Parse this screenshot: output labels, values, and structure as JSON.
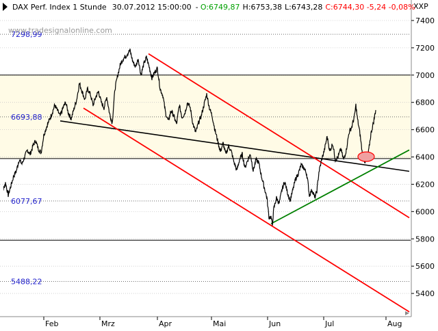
{
  "header": {
    "instrument": "DAX Perf. Index 1 Stunde",
    "datetime": "30.07.2012 15:00:00",
    "open": "O:6749,87",
    "high": "H:6753,38",
    "low": "L:6743,28",
    "close_change": "C:6744,30 -5,24 -0,08%",
    "watermark": "www.tradesignalonline.com"
  },
  "colors": {
    "background": "#ffffff",
    "band_fill": "#fffbe6",
    "price_line": "#000000",
    "channel": "#ff0000",
    "support": "#008000",
    "trendline": "#000000",
    "fib_label": "#2222cc",
    "open_text": "#00a000",
    "close_text": "#ff0000",
    "marker_fill": "#f0a0a0"
  },
  "chart_data": {
    "type": "line",
    "symbol": "XXP",
    "x_labels": [
      "Feb",
      "Mrz",
      "Apr",
      "Mai",
      "Jun",
      "Jul",
      "Aug"
    ],
    "y_ticks": [
      5400,
      5600,
      5800,
      6000,
      6200,
      6400,
      6600,
      6800,
      7000,
      7200,
      7400
    ],
    "ylim": [
      5230,
      7450
    ],
    "grid": "horizontal-dotted",
    "levels": [
      {
        "value": 7298.99,
        "label": "7298,99",
        "style": "dotted"
      },
      {
        "value": 7000,
        "label": "",
        "style": "solid"
      },
      {
        "value": 6693.88,
        "label": "6693,88",
        "style": "dotted"
      },
      {
        "value": 6388,
        "label": "",
        "style": "solid"
      },
      {
        "value": 6077.67,
        "label": "6077,67",
        "style": "dotted"
      },
      {
        "value": 5790,
        "label": "",
        "style": "solid"
      },
      {
        "value": 5488.22,
        "label": "5488,22",
        "style": "dotted"
      }
    ],
    "band": [
      6388,
      7000
    ],
    "series": [
      {
        "values": [
          [
            0,
            6040
          ],
          [
            4,
            6150
          ],
          [
            8,
            6210
          ],
          [
            12,
            6120
          ],
          [
            16,
            6190
          ],
          [
            20,
            6260
          ],
          [
            24,
            6300
          ],
          [
            28,
            6380
          ],
          [
            32,
            6350
          ],
          [
            36,
            6400
          ],
          [
            40,
            6450
          ],
          [
            44,
            6420
          ],
          [
            48,
            6480
          ],
          [
            52,
            6520
          ],
          [
            56,
            6460
          ],
          [
            60,
            6430
          ],
          [
            64,
            6560
          ],
          [
            68,
            6620
          ],
          [
            72,
            6670
          ],
          [
            76,
            6720
          ],
          [
            80,
            6780
          ],
          [
            84,
            6740
          ],
          [
            88,
            6700
          ],
          [
            92,
            6760
          ],
          [
            96,
            6800
          ],
          [
            100,
            6720
          ],
          [
            104,
            6680
          ],
          [
            108,
            6750
          ],
          [
            112,
            6820
          ],
          [
            116,
            6940
          ],
          [
            120,
            6880
          ],
          [
            124,
            6820
          ],
          [
            128,
            6900
          ],
          [
            132,
            6860
          ],
          [
            136,
            6780
          ],
          [
            140,
            6840
          ],
          [
            144,
            6880
          ],
          [
            148,
            6800
          ],
          [
            152,
            6760
          ],
          [
            156,
            6840
          ],
          [
            160,
            6720
          ],
          [
            164,
            6650
          ],
          [
            168,
            6900
          ],
          [
            172,
            7000
          ],
          [
            176,
            7080
          ],
          [
            180,
            7120
          ],
          [
            184,
            7140
          ],
          [
            188,
            7170
          ],
          [
            190,
            7180
          ],
          [
            194,
            7100
          ],
          [
            198,
            7060
          ],
          [
            202,
            7120
          ],
          [
            206,
            7000
          ],
          [
            210,
            7080
          ],
          [
            214,
            7130
          ],
          [
            218,
            7060
          ],
          [
            222,
            6980
          ],
          [
            226,
            7020
          ],
          [
            230,
            7050
          ],
          [
            234,
            6900
          ],
          [
            238,
            6850
          ],
          [
            242,
            6720
          ],
          [
            246,
            6660
          ],
          [
            250,
            6740
          ],
          [
            254,
            6700
          ],
          [
            258,
            6640
          ],
          [
            262,
            6780
          ],
          [
            266,
            6690
          ],
          [
            270,
            6720
          ],
          [
            274,
            6800
          ],
          [
            278,
            6760
          ],
          [
            282,
            6640
          ],
          [
            286,
            6580
          ],
          [
            290,
            6650
          ],
          [
            294,
            6700
          ],
          [
            298,
            6780
          ],
          [
            302,
            6860
          ],
          [
            306,
            6760
          ],
          [
            310,
            6700
          ],
          [
            314,
            6600
          ],
          [
            318,
            6520
          ],
          [
            322,
            6440
          ],
          [
            326,
            6500
          ],
          [
            330,
            6420
          ],
          [
            334,
            6480
          ],
          [
            338,
            6440
          ],
          [
            342,
            6360
          ],
          [
            346,
            6300
          ],
          [
            350,
            6380
          ],
          [
            354,
            6420
          ],
          [
            358,
            6320
          ],
          [
            362,
            6380
          ],
          [
            366,
            6420
          ],
          [
            370,
            6300
          ],
          [
            374,
            6380
          ],
          [
            378,
            6360
          ],
          [
            382,
            6260
          ],
          [
            386,
            6180
          ],
          [
            390,
            6100
          ],
          [
            393,
            5960
          ],
          [
            396,
            5960
          ],
          [
            398,
            5900
          ],
          [
            400,
            6020
          ],
          [
            404,
            6100
          ],
          [
            408,
            6060
          ],
          [
            412,
            6160
          ],
          [
            416,
            6220
          ],
          [
            420,
            6140
          ],
          [
            424,
            6080
          ],
          [
            428,
            6160
          ],
          [
            432,
            6240
          ],
          [
            436,
            6280
          ],
          [
            440,
            6340
          ],
          [
            444,
            6320
          ],
          [
            448,
            6280
          ],
          [
            450,
            6210
          ],
          [
            452,
            6120
          ],
          [
            456,
            6160
          ],
          [
            460,
            6100
          ],
          [
            463,
            6150
          ],
          [
            466,
            6290
          ],
          [
            470,
            6380
          ],
          [
            474,
            6450
          ],
          [
            478,
            6550
          ],
          [
            482,
            6440
          ],
          [
            486,
            6500
          ],
          [
            490,
            6380
          ],
          [
            494,
            6400
          ],
          [
            498,
            6460
          ],
          [
            502,
            6380
          ],
          [
            506,
            6450
          ],
          [
            510,
            6580
          ],
          [
            514,
            6620
          ],
          [
            518,
            6700
          ],
          [
            520,
            6780
          ],
          [
            522,
            6690
          ],
          [
            526,
            6570
          ],
          [
            530,
            6400
          ],
          [
            534,
            6360
          ],
          [
            538,
            6420
          ],
          [
            542,
            6570
          ],
          [
            546,
            6660
          ],
          [
            549,
            6744
          ]
        ]
      }
    ],
    "lines": [
      {
        "name": "trendline",
        "color": "#000000",
        "points": [
          [
            88,
            6664
          ],
          [
            598,
            6295
          ]
        ]
      },
      {
        "name": "channel-upper",
        "color": "#ff0000",
        "points": [
          [
            217,
            7156
          ],
          [
            598,
            5955
          ]
        ]
      },
      {
        "name": "channel-lower",
        "color": "#ff0000",
        "points": [
          [
            122,
            6758
          ],
          [
            598,
            5265
          ]
        ]
      },
      {
        "name": "support",
        "color": "#008000",
        "points": [
          [
            396,
            5911
          ],
          [
            598,
            6451
          ]
        ]
      }
    ],
    "marker": {
      "x": 535,
      "y": 6402
    }
  }
}
